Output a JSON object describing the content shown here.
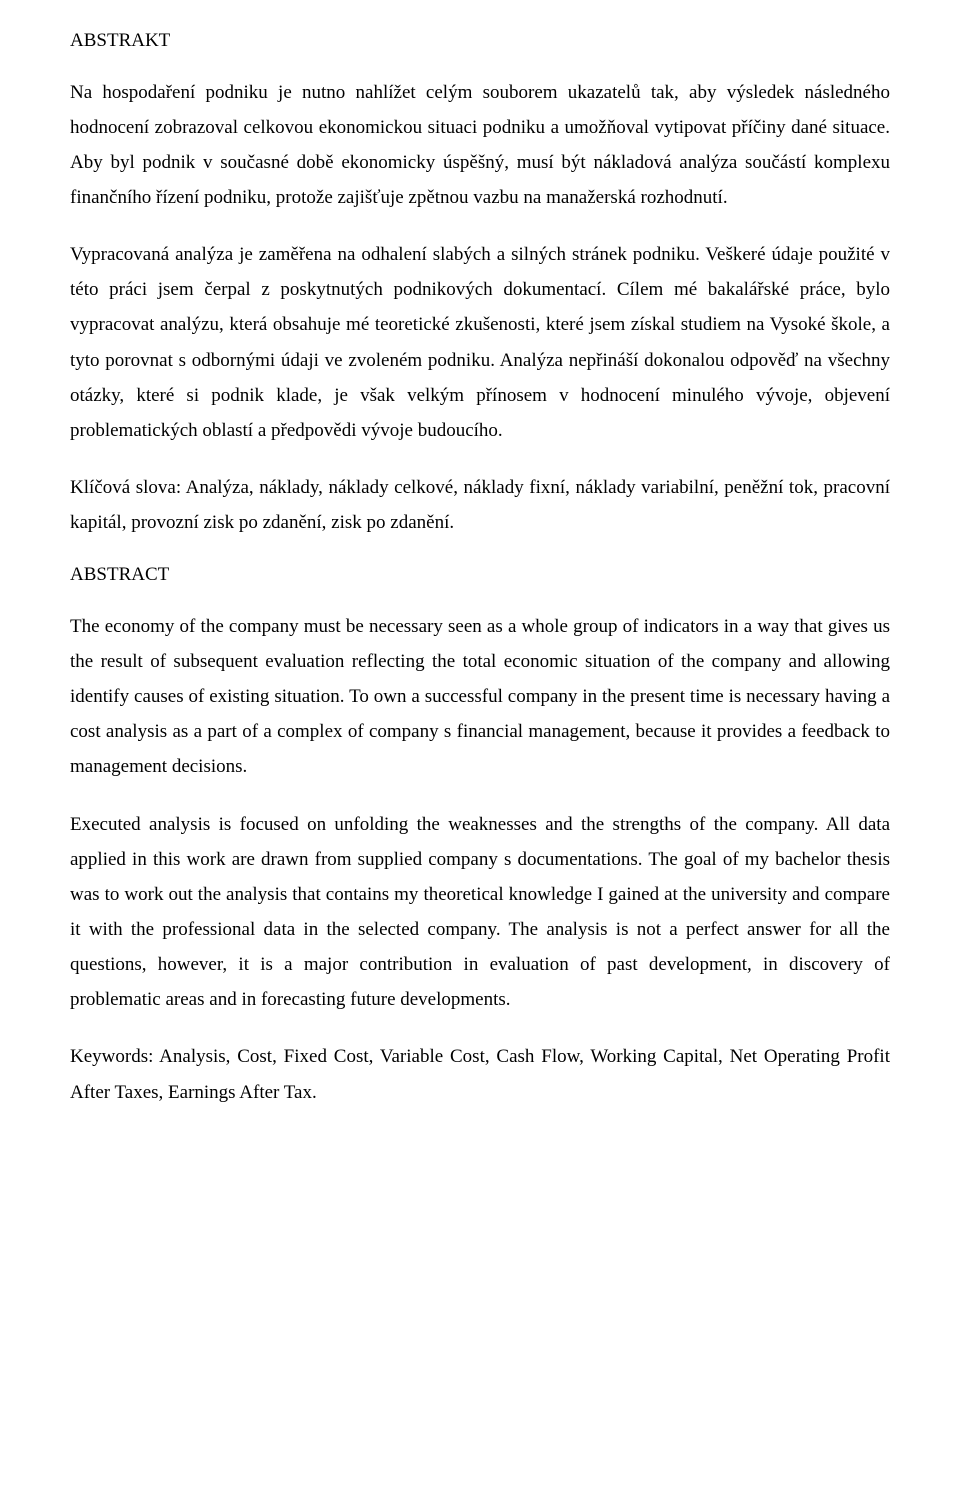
{
  "doc": {
    "h1": "ABSTRAKT",
    "p1": "Na hospodaření podniku je nutno nahlížet celým souborem ukazatelů tak, aby výsledek následného hodnocení zobrazoval celkovou ekonomickou situaci podniku a umožňoval vytipovat příčiny dané situace. Aby byl podnik v současné době ekonomicky úspěšný, musí být nákladová analýza součástí komplexu finančního řízení podniku, protože zajišťuje zpětnou vazbu na manažerská rozhodnutí.",
    "p2": "Vypracovaná analýza je zaměřena na odhalení slabých a silných stránek podniku. Veškeré údaje použité v této práci jsem čerpal z poskytnutých podnikových dokumentací. Cílem mé bakalářské práce, bylo vypracovat analýzu, která obsahuje mé teoretické zkušenosti, které jsem získal studiem na Vysoké škole, a tyto porovnat s odbornými údaji ve zvoleném podniku. Analýza nepřináší dokonalou odpověď na všechny otázky, které si podnik klade, je však velkým přínosem v hodnocení minulého vývoje, objevení problematických oblastí a předpovědi vývoje budoucího.",
    "p3": "Klíčová slova: Analýza, náklady, náklady celkové, náklady fixní, náklady variabilní, peněžní tok, pracovní kapitál, provozní zisk po zdanění, zisk po zdanění.",
    "h2": "ABSTRACT",
    "p4": "The economy of the company must be necessary seen as a whole group of indicators in a way that gives us the result of subsequent evaluation reflecting the total economic situation of the company and allowing identify causes of existing situation. To own a successful company in the present time is necessary having a cost analysis as a part of a complex of company s financial management, because it provides a feedback to management decisions.",
    "p5": "Executed analysis is focused on unfolding the weaknesses and the strengths of the company. All data applied in this work are drawn from supplied company s documentations. The goal of my bachelor thesis was to work out the analysis that contains my theoretical knowledge I gained at the university and compare it with the professional data in the selected company. The analysis is not a perfect answer for all the questions, however, it is a major contribution in evaluation of past development, in discovery of problematic areas and in forecasting future developments.",
    "p6": "Keywords: Analysis, Cost, Fixed Cost, Variable Cost, Cash Flow, Working Capital, Net Operating Profit After Taxes, Earnings After Tax."
  }
}
